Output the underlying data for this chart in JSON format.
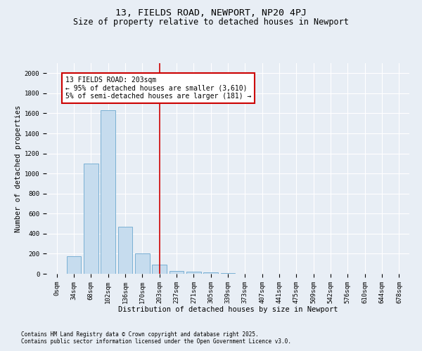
{
  "title": "13, FIELDS ROAD, NEWPORT, NP20 4PJ",
  "subtitle": "Size of property relative to detached houses in Newport",
  "xlabel": "Distribution of detached houses by size in Newport",
  "ylabel": "Number of detached properties",
  "footnote1": "Contains HM Land Registry data © Crown copyright and database right 2025.",
  "footnote2": "Contains public sector information licensed under the Open Government Licence v3.0.",
  "bar_color": "#c6dcee",
  "bar_edge_color": "#7ab0d4",
  "background_color": "#e8eef5",
  "grid_color": "#ffffff",
  "annotation_box_color": "#cc0000",
  "vline_color": "#cc0000",
  "categories": [
    "0sqm",
    "34sqm",
    "68sqm",
    "102sqm",
    "136sqm",
    "170sqm",
    "203sqm",
    "237sqm",
    "271sqm",
    "305sqm",
    "339sqm",
    "373sqm",
    "407sqm",
    "441sqm",
    "475sqm",
    "509sqm",
    "542sqm",
    "576sqm",
    "610sqm",
    "644sqm",
    "678sqm"
  ],
  "values": [
    0,
    175,
    1100,
    1630,
    470,
    200,
    90,
    30,
    20,
    15,
    5,
    3,
    2,
    1,
    1,
    0,
    0,
    0,
    0,
    0,
    0
  ],
  "ylim": [
    0,
    2100
  ],
  "yticks": [
    0,
    200,
    400,
    600,
    800,
    1000,
    1200,
    1400,
    1600,
    1800,
    2000
  ],
  "vline_x_index": 6,
  "annotation_text": "13 FIELDS ROAD: 203sqm\n← 95% of detached houses are smaller (3,610)\n5% of semi-detached houses are larger (181) →",
  "title_fontsize": 9.5,
  "subtitle_fontsize": 8.5,
  "axis_fontsize": 7.5,
  "tick_fontsize": 6.5,
  "annotation_fontsize": 7,
  "footnote_fontsize": 5.5
}
